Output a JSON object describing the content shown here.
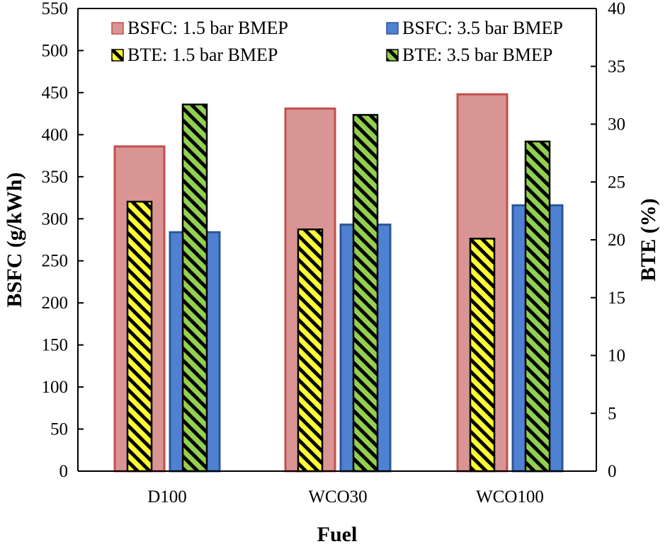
{
  "chart_data": {
    "type": "bar",
    "categories": [
      "D100",
      "WCO30",
      "WCO100"
    ],
    "xlabel": "Fuel",
    "ylabel": "BSFC (g/kWh)",
    "y2label": "BTE (%)",
    "ylim": [
      0,
      550
    ],
    "y2lim": [
      0,
      40
    ],
    "yticks": [
      "0",
      "50",
      "100",
      "150",
      "200",
      "250",
      "300",
      "350",
      "400",
      "450",
      "500",
      "550"
    ],
    "y2ticks": [
      "0",
      "5",
      "10",
      "15",
      "20",
      "25",
      "30",
      "35",
      "40"
    ],
    "bsfc_series": [
      {
        "name": "BSFC: 1.5 bar BMEP",
        "values": [
          386,
          431,
          448
        ],
        "color": "#D99594",
        "edge": "#C0504D"
      },
      {
        "name": "BSFC: 3.5 bar BMEP",
        "values": [
          284,
          293,
          316
        ],
        "color": "#4F81D3",
        "edge": "#2F5597"
      }
    ],
    "bte_series": [
      {
        "name": "BTE: 1.5 bar BMEP",
        "values": [
          23.3,
          20.9,
          20.1
        ],
        "color": "#FFFF33",
        "hatch": "#000000"
      },
      {
        "name": "BTE: 3.5 bar BMEP",
        "values": [
          31.7,
          30.8,
          28.5
        ],
        "color": "#92D050",
        "hatch": "#000000"
      }
    ],
    "legend_position": "top"
  }
}
